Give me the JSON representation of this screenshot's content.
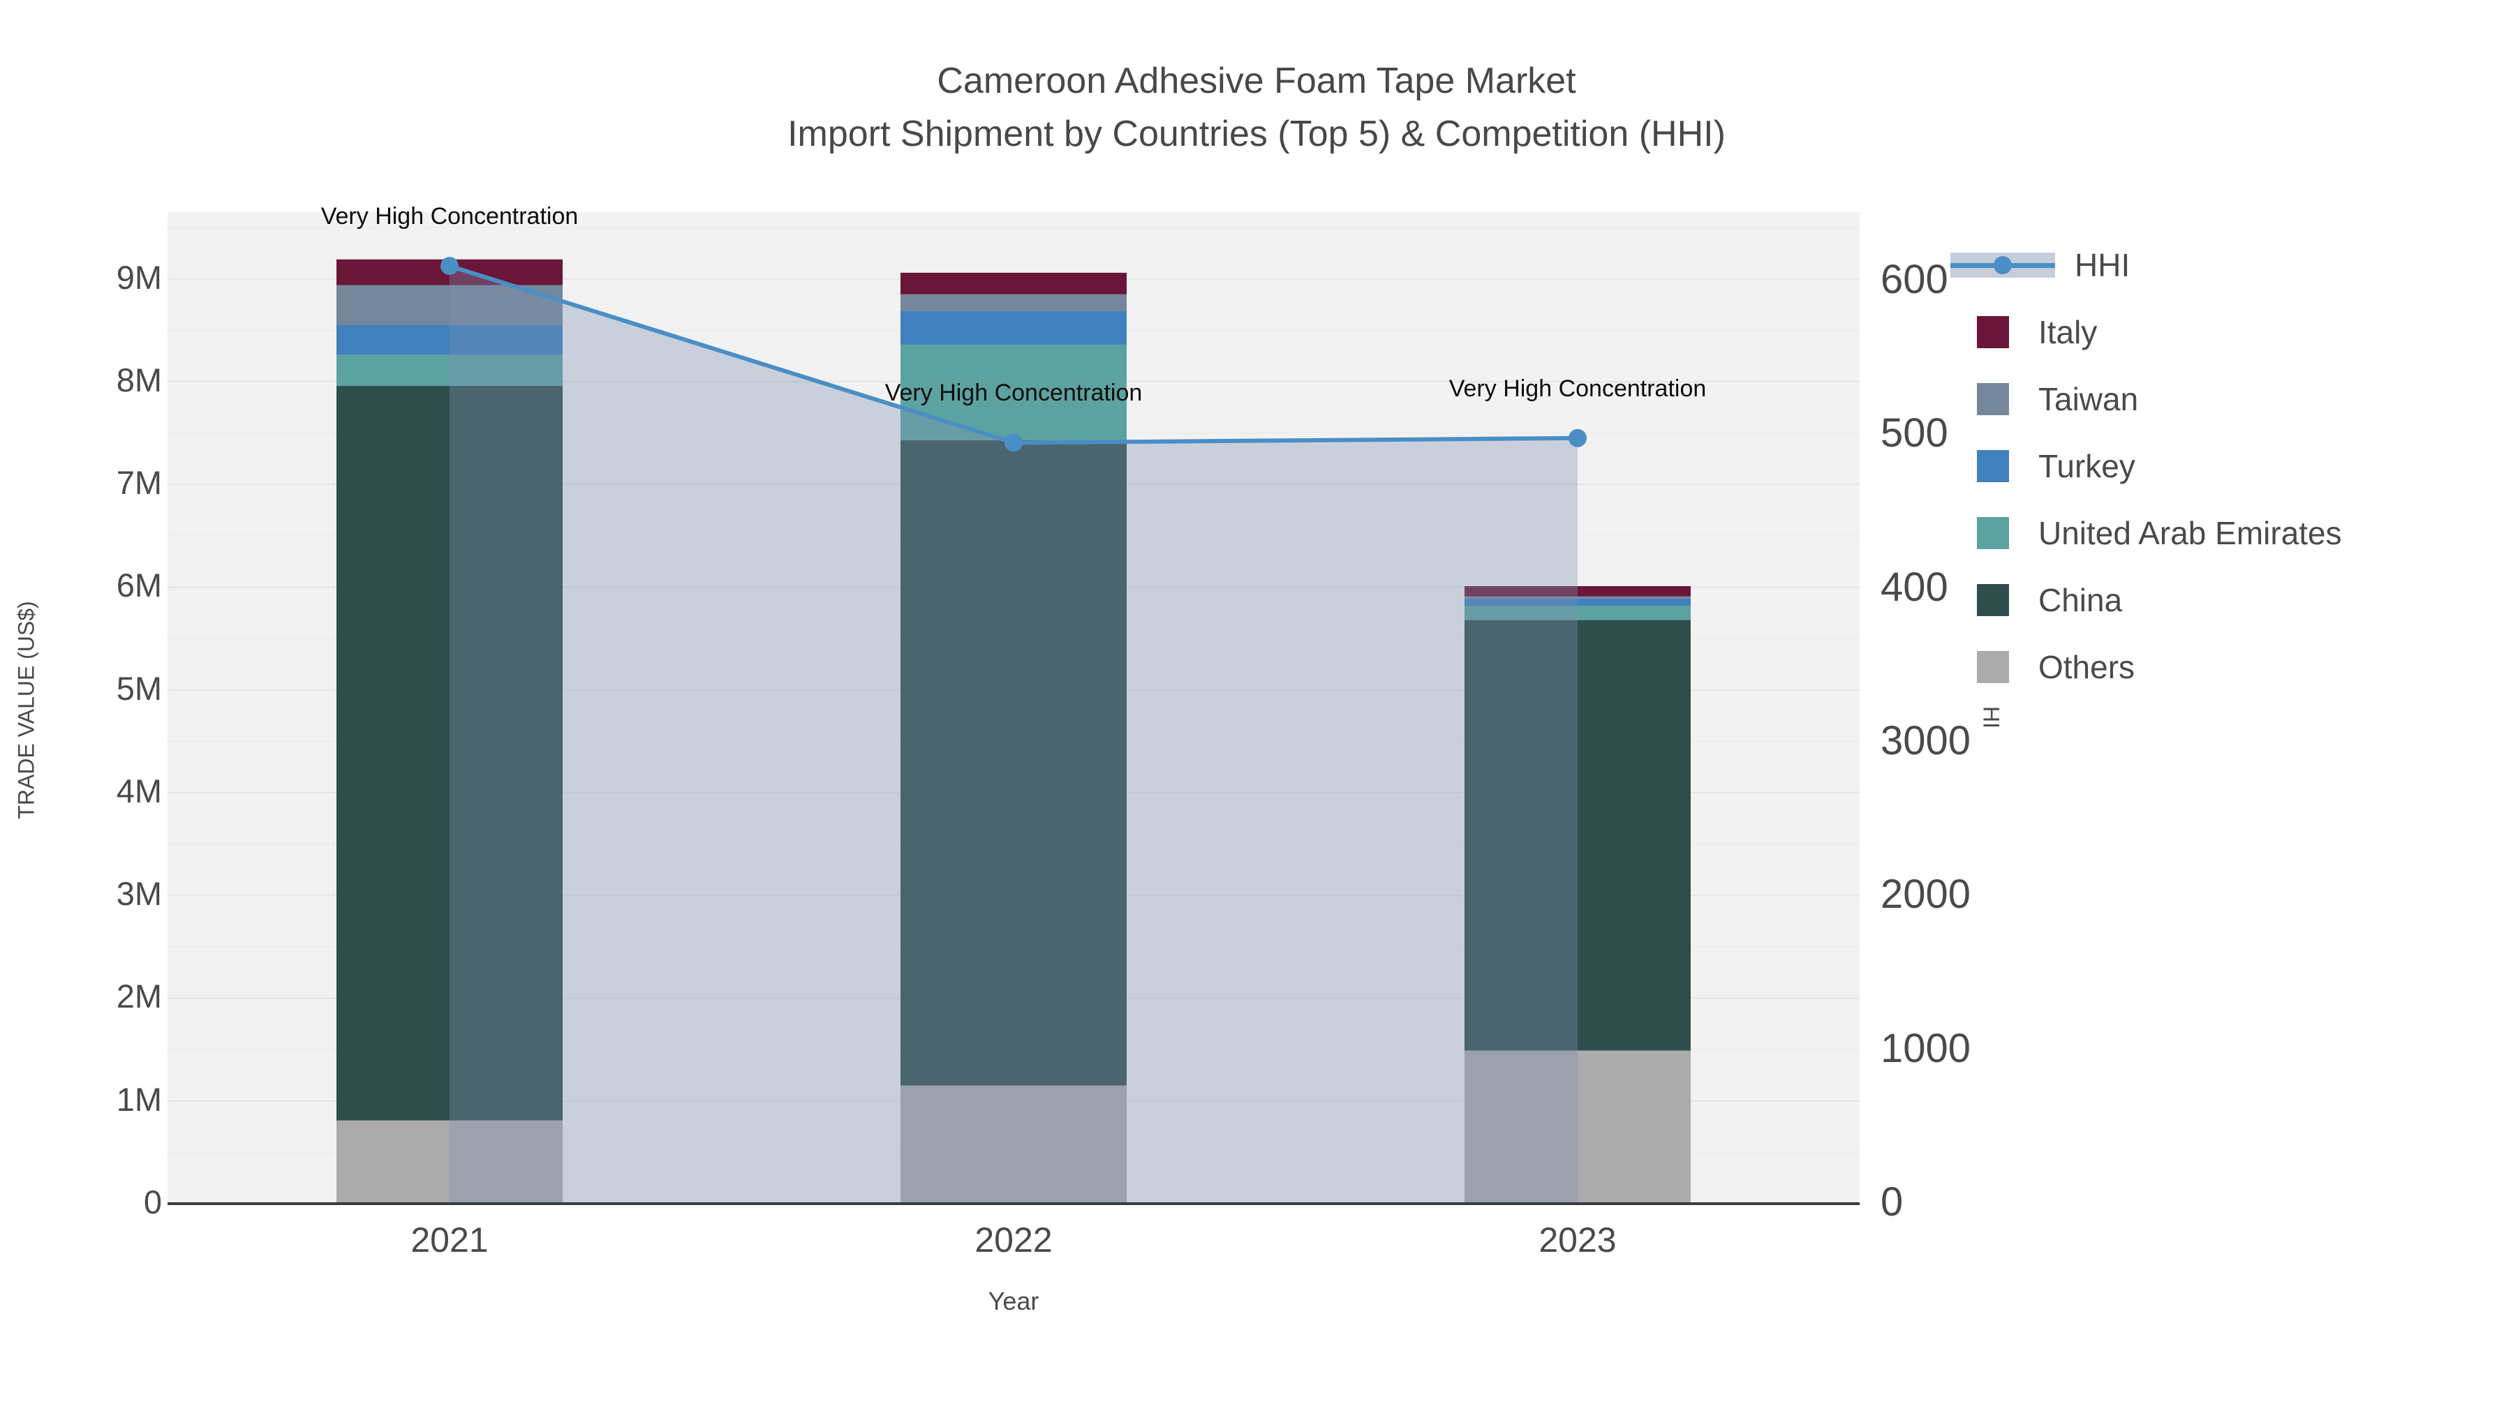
{
  "title": {
    "line1": "Cameroon Adhesive Foam Tape Market",
    "line2": "Import Shipment by Countries (Top 5) & Competition (HHI)"
  },
  "axes": {
    "x": {
      "title": "Year",
      "ticks": [
        "2021",
        "2022",
        "2023"
      ]
    },
    "y1": {
      "title": "TRADE VALUE (US$)",
      "ticks": [
        "0",
        "1M",
        "2M",
        "3M",
        "4M",
        "5M",
        "6M",
        "7M",
        "8M",
        "9M"
      ]
    },
    "y2": {
      "title": "HHI",
      "ticks": [
        "0",
        "1000",
        "2000",
        "3000",
        "4000",
        "5000",
        "6000"
      ]
    }
  },
  "legend": {
    "items": [
      {
        "label": "HHI",
        "type": "line",
        "color": "#4a8ec6",
        "band": "#c5ceda"
      },
      {
        "label": "Italy",
        "type": "box",
        "color": "#6a1638"
      },
      {
        "label": "Taiwan",
        "type": "box",
        "color": "#75879a"
      },
      {
        "label": "Turkey",
        "type": "box",
        "color": "#4080bd"
      },
      {
        "label": "United Arab Emirates",
        "type": "box",
        "color": "#5ca2a0"
      },
      {
        "label": "China",
        "type": "box",
        "color": "#2e4e4b"
      },
      {
        "label": "Others",
        "type": "box",
        "color": "#ababab"
      }
    ]
  },
  "annotations": [
    {
      "text": "Very High Concentration",
      "year": "2021"
    },
    {
      "text": "Very High Concentration",
      "year": "2022"
    },
    {
      "text": "Very High Concentration",
      "year": "2023"
    }
  ],
  "colors": {
    "plot_background": "#f2f2f2",
    "paper_background": "#ffffff",
    "grid_major": "#e3e6e6",
    "grid_minor": "#eceeee",
    "axis_line": "#3b3b3b",
    "tick_text": "#4a4a4a",
    "hhi_line": "#4a8ec6",
    "hhi_fill": "rgba(125,146,177,0.35)",
    "annotation_text": "#0d0d0d"
  },
  "chart_data": {
    "type": "bar",
    "subtype": "stacked-bars-with-line-overlay",
    "categories": [
      "2021",
      "2022",
      "2023"
    ],
    "series": [
      {
        "name": "Others",
        "color": "#ababab",
        "values": [
          810000,
          1150000,
          1490000
        ]
      },
      {
        "name": "China",
        "color": "#2e4e4b",
        "values": [
          7150000,
          6280000,
          4190000
        ]
      },
      {
        "name": "United Arab Emirates",
        "color": "#5ca2a0",
        "values": [
          300000,
          930000,
          140000
        ]
      },
      {
        "name": "Turkey",
        "color": "#4080bd",
        "values": [
          290000,
          330000,
          70000
        ]
      },
      {
        "name": "Taiwan",
        "color": "#75879a",
        "values": [
          390000,
          160000,
          20000
        ]
      },
      {
        "name": "Italy",
        "color": "#6a1638",
        "values": [
          250000,
          210000,
          100000
        ]
      }
    ],
    "totals": [
      9190000,
      9060000,
      6010000
    ],
    "line_series": {
      "name": "HHI",
      "color": "#4a8ec6",
      "values": [
        6100,
        4950,
        4980
      ],
      "fill": "tozeroy",
      "axis": "y2"
    },
    "title": "Cameroon Adhesive Foam Tape Market — Import Shipment by Countries (Top 5) & Competition (HHI)",
    "xlabel": "Year",
    "ylabel": "TRADE VALUE (US$)",
    "y2label": "HHI",
    "ylim": [
      0,
      9650000
    ],
    "y2lim": [
      0,
      6450
    ],
    "grid": "horizontal-major-and-minor",
    "legend_position": "right"
  }
}
